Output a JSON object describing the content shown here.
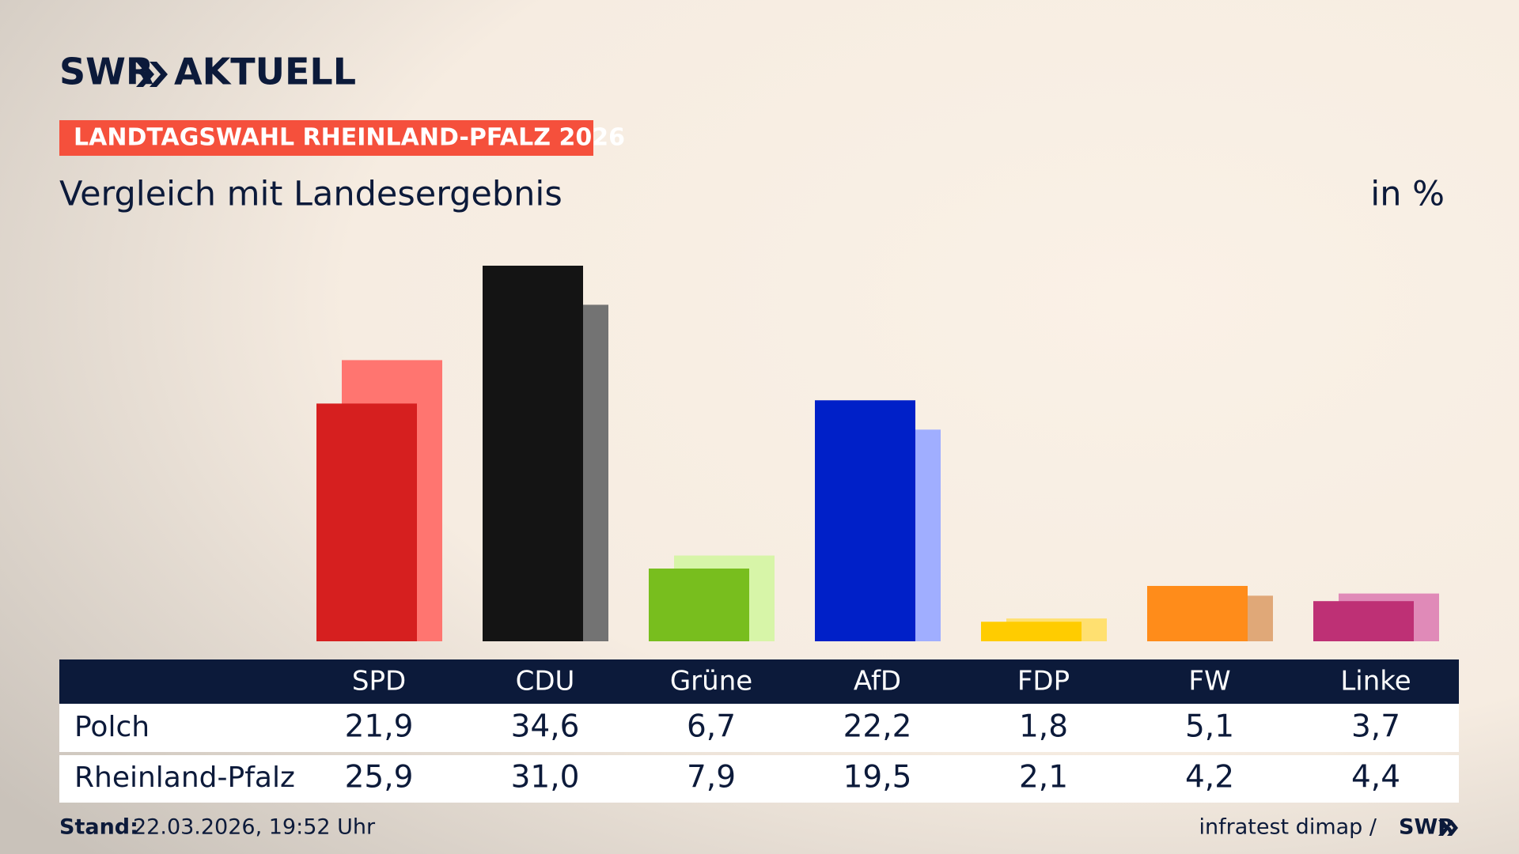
{
  "chart_data": {
    "type": "bar",
    "brand": {
      "name": "SWR",
      "product": "AKTUELL"
    },
    "banner": "LANDTAGSWAHL RHEINLAND-PFALZ 2026",
    "title": "Vergleich mit Landesergebnis",
    "unit_label": "in %",
    "categories": [
      "SPD",
      "CDU",
      "Grüne",
      "AfD",
      "FDP",
      "FW",
      "Linke"
    ],
    "series": [
      {
        "name": "Polch",
        "values": [
          21.9,
          34.6,
          6.7,
          22.2,
          1.8,
          5.1,
          3.7
        ],
        "value_labels": [
          "21,9",
          "34,6",
          "6,7",
          "22,2",
          "1,8",
          "5,1",
          "3,7"
        ],
        "colors": [
          "#d61f1f",
          "#141414",
          "#78be1e",
          "#0020c8",
          "#ffcc00",
          "#ff8c1a",
          "#be3075"
        ]
      },
      {
        "name": "Rheinland-Pfalz",
        "values": [
          25.9,
          31.0,
          7.9,
          19.5,
          2.1,
          4.2,
          4.4
        ],
        "value_labels": [
          "25,9",
          "31,0",
          "7,9",
          "19,5",
          "2,1",
          "4,2",
          "4,4"
        ],
        "colors": [
          "#ff7570",
          "#737373",
          "#d7f5a8",
          "#a0aeff",
          "#ffe070",
          "#e0a878",
          "#e08ab8"
        ]
      }
    ],
    "footer": {
      "stand_label": "Stand:",
      "stand": "22.03.2026, 19:52 Uhr",
      "source": "infratest dimap /",
      "source_brand": "SWR"
    }
  }
}
